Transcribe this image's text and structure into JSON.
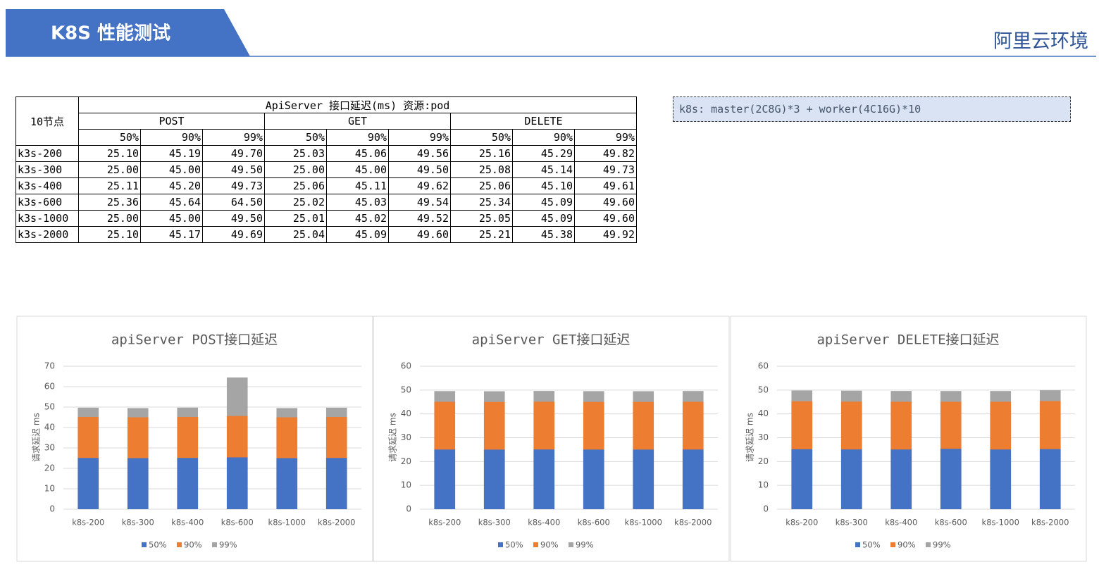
{
  "header": {
    "title": "K8S 性能测试",
    "region": "阿里云环境"
  },
  "note": "k8s: master(2C8G)*3 + worker(4C16G)*10",
  "table": {
    "corner": "10节点",
    "title": "ApiServer 接口延迟(ms) 资源:pod",
    "groups": [
      "POST",
      "GET",
      "DELETE"
    ],
    "percentiles": [
      "50%",
      "90%",
      "99%"
    ],
    "rows": [
      [
        "k3s-200",
        "25.10",
        "45.19",
        "49.70",
        "25.03",
        "45.06",
        "49.56",
        "25.16",
        "45.29",
        "49.82"
      ],
      [
        "k3s-300",
        "25.00",
        "45.00",
        "49.50",
        "25.00",
        "45.00",
        "49.50",
        "25.08",
        "45.14",
        "49.73"
      ],
      [
        "k3s-400",
        "25.11",
        "45.20",
        "49.73",
        "25.06",
        "45.11",
        "49.62",
        "25.06",
        "45.10",
        "49.61"
      ],
      [
        "k3s-600",
        "25.36",
        "45.64",
        "64.50",
        "25.02",
        "45.03",
        "49.54",
        "25.34",
        "45.09",
        "49.60"
      ],
      [
        "k3s-1000",
        "25.00",
        "45.00",
        "49.50",
        "25.01",
        "45.02",
        "49.52",
        "25.05",
        "45.09",
        "49.60"
      ],
      [
        "k3s-2000",
        "25.10",
        "45.17",
        "49.69",
        "25.04",
        "45.09",
        "49.60",
        "25.21",
        "45.38",
        "49.92"
      ]
    ]
  },
  "chart_data": [
    {
      "type": "bar",
      "barmode": "overlay",
      "title": "apiServer POST接口延迟",
      "y_label": "请求延迟 ms",
      "categories": [
        "k8s-200",
        "k8s-300",
        "k8s-400",
        "k8s-600",
        "k8s-1000",
        "k8s-2000"
      ],
      "series": [
        {
          "name": "50%",
          "color": "#4472c4",
          "values": [
            25.1,
            25.0,
            25.11,
            25.36,
            25.0,
            25.1
          ]
        },
        {
          "name": "90%",
          "color": "#ed7d31",
          "values": [
            45.19,
            45.0,
            45.2,
            45.64,
            45.0,
            45.17
          ]
        },
        {
          "name": "99%",
          "color": "#a5a5a5",
          "values": [
            49.7,
            49.5,
            49.73,
            64.5,
            49.5,
            49.69
          ]
        }
      ],
      "ylim": [
        0,
        70
      ],
      "yticks": [
        0,
        10,
        20,
        30,
        40,
        50,
        60,
        70
      ],
      "grid": true,
      "legend": "bottom"
    },
    {
      "type": "bar",
      "barmode": "overlay",
      "title": "apiServer GET接口延迟",
      "y_label": "请求延迟 ms",
      "categories": [
        "k8s-200",
        "k8s-300",
        "k8s-400",
        "k8s-600",
        "k8s-1000",
        "k8s-2000"
      ],
      "series": [
        {
          "name": "50%",
          "color": "#4472c4",
          "values": [
            25.03,
            25.0,
            25.06,
            25.02,
            25.01,
            25.04
          ]
        },
        {
          "name": "90%",
          "color": "#ed7d31",
          "values": [
            45.06,
            45.0,
            45.11,
            45.03,
            45.02,
            45.09
          ]
        },
        {
          "name": "99%",
          "color": "#a5a5a5",
          "values": [
            49.56,
            49.5,
            49.62,
            49.54,
            49.52,
            49.6
          ]
        }
      ],
      "ylim": [
        0,
        60
      ],
      "yticks": [
        0,
        10,
        20,
        30,
        40,
        50,
        60
      ],
      "grid": true,
      "legend": "bottom"
    },
    {
      "type": "bar",
      "barmode": "overlay",
      "title": "apiServer DELETE接口延迟",
      "y_label": "请求延迟 ms",
      "categories": [
        "k8s-200",
        "k8s-300",
        "k8s-400",
        "k8s-600",
        "k8s-1000",
        "k8s-2000"
      ],
      "series": [
        {
          "name": "50%",
          "color": "#4472c4",
          "values": [
            25.16,
            25.08,
            25.06,
            25.34,
            25.05,
            25.21
          ]
        },
        {
          "name": "90%",
          "color": "#ed7d31",
          "values": [
            45.29,
            45.14,
            45.1,
            45.09,
            45.09,
            45.38
          ]
        },
        {
          "name": "99%",
          "color": "#a5a5a5",
          "values": [
            49.82,
            49.73,
            49.61,
            49.6,
            49.6,
            49.92
          ]
        }
      ],
      "ylim": [
        0,
        60
      ],
      "yticks": [
        0,
        10,
        20,
        30,
        40,
        50,
        60
      ],
      "grid": true,
      "legend": "bottom"
    }
  ]
}
